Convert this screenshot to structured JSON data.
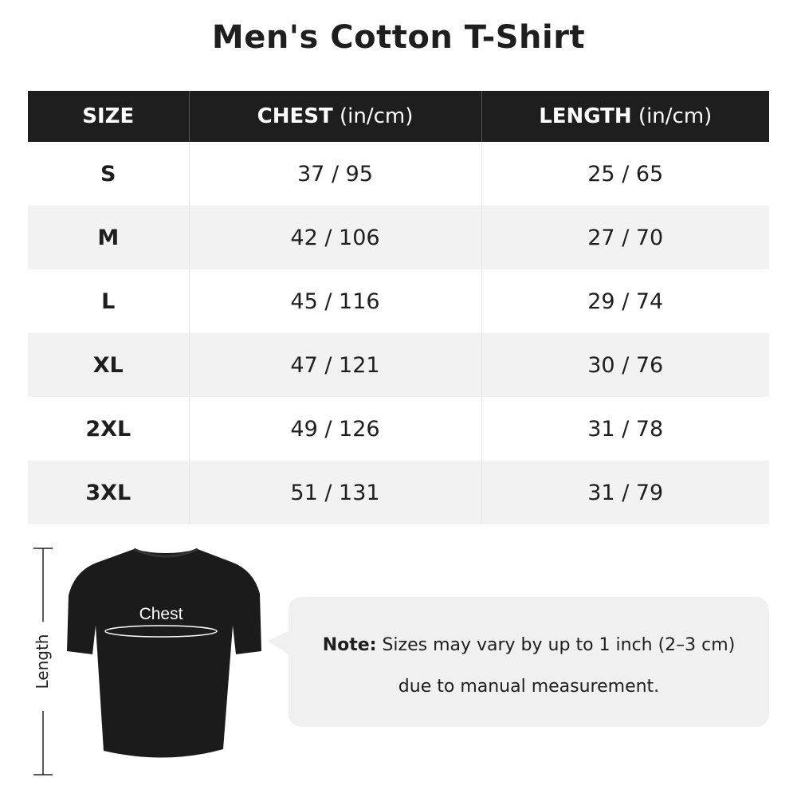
{
  "title": "Men's Cotton T-Shirt",
  "table": {
    "headers": [
      {
        "bold": "SIZE",
        "unit": ""
      },
      {
        "bold": "CHEST",
        "unit": " (in/cm)"
      },
      {
        "bold": "LENGTH",
        "unit": " (in/cm)"
      }
    ],
    "rows": [
      [
        "S",
        "37 / 95",
        "25 / 65"
      ],
      [
        "M",
        "42 / 106",
        "27 / 70"
      ],
      [
        "L",
        "45 / 116",
        "29 / 74"
      ],
      [
        "XL",
        "47 / 121",
        "30 / 76"
      ],
      [
        "2XL",
        "49 / 126",
        "31 / 78"
      ],
      [
        "3XL",
        "51 / 131",
        "31 / 79"
      ]
    ]
  },
  "diagram": {
    "chest_label": "Chest",
    "length_label": "Length"
  },
  "note": {
    "label": "Note:",
    "line1": " Sizes may vary by up to 1 inch (2–3 cm)",
    "line2": "due to manual measurement."
  }
}
